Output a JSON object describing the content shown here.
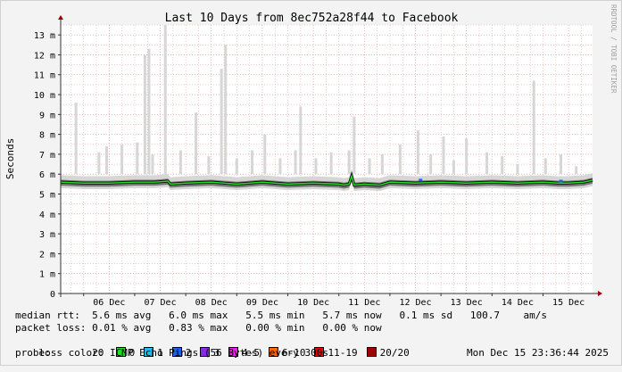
{
  "chart_data": {
    "type": "line",
    "title": "Last 10 Days from 8ec752a28f44 to Facebook",
    "ylabel": "Seconds",
    "watermark": "RRDTOOL / TOBI OETIKER",
    "ylim": [
      0,
      13.5
    ],
    "y_ticks": [
      {
        "v": 0,
        "label": "0"
      },
      {
        "v": 1,
        "label": "1 m"
      },
      {
        "v": 2,
        "label": "2 m"
      },
      {
        "v": 3,
        "label": "3 m"
      },
      {
        "v": 4,
        "label": "4 m"
      },
      {
        "v": 5,
        "label": "5 m"
      },
      {
        "v": 6,
        "label": "6 m"
      },
      {
        "v": 7,
        "label": "7 m"
      },
      {
        "v": 8,
        "label": "8 m"
      },
      {
        "v": 9,
        "label": "9 m"
      },
      {
        "v": 10,
        "label": "10 m"
      },
      {
        "v": 11,
        "label": "11 m"
      },
      {
        "v": 12,
        "label": "12 m"
      },
      {
        "v": 13,
        "label": "13 m"
      }
    ],
    "x_ticks": [
      "06 Dec",
      "07 Dec",
      "08 Dec",
      "09 Dec",
      "10 Dec",
      "11 Dec",
      "12 Dec",
      "13 Dec",
      "14 Dec",
      "15 Dec"
    ],
    "xlim_days": [
      5.55,
      15.97
    ],
    "series": [
      {
        "name": "median rtt",
        "color": "#22dd22",
        "x_days": [
          5.55,
          6.0,
          6.5,
          7.0,
          7.4,
          7.65,
          7.7,
          8.0,
          8.5,
          9.0,
          9.5,
          10.0,
          10.5,
          11.0,
          11.1,
          11.2,
          11.25,
          11.3,
          11.5,
          11.8,
          12.0,
          12.5,
          13.0,
          13.5,
          14.0,
          14.5,
          15.0,
          15.3,
          15.5,
          15.8,
          15.97
        ],
        "values": [
          5.6,
          5.55,
          5.55,
          5.6,
          5.6,
          5.65,
          5.5,
          5.55,
          5.6,
          5.5,
          5.6,
          5.5,
          5.55,
          5.5,
          5.45,
          5.5,
          5.9,
          5.45,
          5.5,
          5.45,
          5.6,
          5.55,
          5.6,
          5.55,
          5.6,
          5.55,
          5.6,
          5.55,
          5.55,
          5.6,
          5.7
        ]
      }
    ],
    "spikes_ms": [
      {
        "x": 5.85,
        "v": 9.6
      },
      {
        "x": 6.3,
        "v": 7.1
      },
      {
        "x": 6.45,
        "v": 7.4
      },
      {
        "x": 6.75,
        "v": 7.5
      },
      {
        "x": 7.05,
        "v": 7.6
      },
      {
        "x": 7.2,
        "v": 12.0
      },
      {
        "x": 7.28,
        "v": 12.3
      },
      {
        "x": 7.35,
        "v": 7.0
      },
      {
        "x": 7.6,
        "v": 14.0
      },
      {
        "x": 7.9,
        "v": 7.2
      },
      {
        "x": 8.2,
        "v": 9.1
      },
      {
        "x": 8.45,
        "v": 6.9
      },
      {
        "x": 8.7,
        "v": 11.3
      },
      {
        "x": 8.78,
        "v": 12.5
      },
      {
        "x": 9.0,
        "v": 6.8
      },
      {
        "x": 9.3,
        "v": 7.2
      },
      {
        "x": 9.55,
        "v": 8.0
      },
      {
        "x": 9.85,
        "v": 6.8
      },
      {
        "x": 10.15,
        "v": 7.2
      },
      {
        "x": 10.25,
        "v": 9.4
      },
      {
        "x": 10.55,
        "v": 6.8
      },
      {
        "x": 10.85,
        "v": 7.1
      },
      {
        "x": 11.2,
        "v": 7.2
      },
      {
        "x": 11.3,
        "v": 8.9
      },
      {
        "x": 11.6,
        "v": 6.8
      },
      {
        "x": 11.85,
        "v": 7.0
      },
      {
        "x": 12.2,
        "v": 7.5
      },
      {
        "x": 12.55,
        "v": 8.2
      },
      {
        "x": 12.8,
        "v": 7.0
      },
      {
        "x": 13.05,
        "v": 7.9
      },
      {
        "x": 13.25,
        "v": 6.7
      },
      {
        "x": 13.5,
        "v": 7.8
      },
      {
        "x": 13.9,
        "v": 7.1
      },
      {
        "x": 14.2,
        "v": 6.9
      },
      {
        "x": 14.5,
        "v": 6.5
      },
      {
        "x": 14.82,
        "v": 10.7
      },
      {
        "x": 15.05,
        "v": 6.8
      },
      {
        "x": 15.35,
        "v": 7.0
      },
      {
        "x": 15.65,
        "v": 6.4
      }
    ],
    "loss_markers": [
      {
        "x": 12.6,
        "v": 5.7,
        "color": "#1f5fe8"
      },
      {
        "x": 15.35,
        "v": 5.65,
        "color": "#1f5fe8"
      }
    ],
    "colors": {
      "grid": "#e8a8a8",
      "grid_major": "#d98a8a",
      "axis": "#333333",
      "arrow": "#a00000",
      "smoke_light": "#d6d6d6",
      "smoke_dark": "#555555",
      "median": "#22dd22",
      "plot_bg": "#ffffff",
      "canvas_bg": "#f3f3f3"
    }
  },
  "stats": {
    "median_rtt": "median rtt:  5.6 ms avg   6.0 ms max   5.5 ms min   5.7 ms now   0.1 ms sd   100.7    am/s",
    "packet_loss": "packet loss: 0.01 % avg   0.83 % max   0.00 % min   0.00 % now",
    "loss_color_label": "loss color:",
    "loss_colors": [
      {
        "label": "0",
        "color": "#22dd22"
      },
      {
        "label": "1",
        "color": "#22bbee"
      },
      {
        "label": "2",
        "color": "#1f5fe8"
      },
      {
        "label": "3",
        "color": "#8a2be2"
      },
      {
        "label": "4-5",
        "color": "#e81ee8"
      },
      {
        "label": "6-10",
        "color": "#ff6a00"
      },
      {
        "label": "11-19",
        "color": "#ee0000"
      },
      {
        "label": "20/20",
        "color": "#a00000"
      }
    ],
    "probe": "probe:       20 ICMP Echo Pings (56 Bytes) every 300s",
    "timestamp": "Mon Dec 15 23:36:44 2025"
  }
}
